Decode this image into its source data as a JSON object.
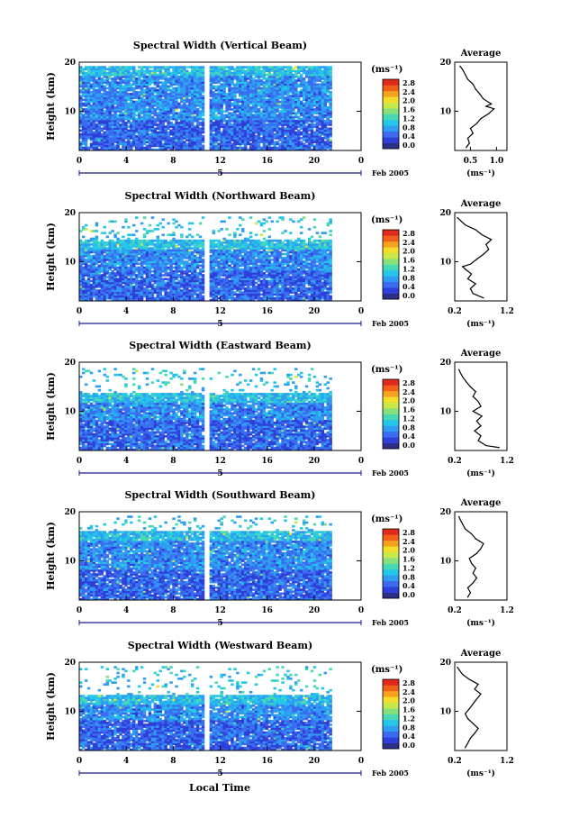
{
  "footer_xlabel": "Local Time",
  "colorbar": {
    "unit": "(ms⁻¹)",
    "ticks": [
      "0.0",
      "0.4",
      "0.8",
      "1.2",
      "1.6",
      "2.0",
      "2.4",
      "2.8"
    ],
    "colors": [
      "#2b2f87",
      "#2f3fd9",
      "#3b6cf0",
      "#2f9df2",
      "#25c7e9",
      "#49d8b4",
      "#88e07a",
      "#c8e84a",
      "#f3dc2a",
      "#f6a21e",
      "#f0601a",
      "#e0281c"
    ]
  },
  "chart_data": [
    {
      "type": "heatmap",
      "title": "Spectral Width (Vertical Beam)",
      "ylabel": "Height (km)",
      "ylim": [
        2,
        20
      ],
      "xlim": [
        0,
        24
      ],
      "x_ticks": [
        "0",
        "4",
        "8",
        "12",
        "16",
        "20",
        "0"
      ],
      "y_ticks": [
        "20",
        "10"
      ],
      "day_label": "5",
      "date_label": "Feb 2005",
      "data_x_range": [
        0,
        21.5
      ],
      "gap_x": 10.8,
      "top_km": 19.2,
      "zone_top_km": 19.2,
      "avg": {
        "title": "Average",
        "xlim": [
          0.2,
          1.2
        ],
        "x_ticks": [
          "0.5",
          "1.0"
        ],
        "x_tick_values": [
          0.5,
          1.0
        ],
        "y_ticks": [
          "20",
          "10"
        ],
        "xlabel": "(ms⁻¹)",
        "profile": [
          {
            "h": 2.6,
            "v": 0.42
          },
          {
            "h": 3.5,
            "v": 0.48
          },
          {
            "h": 4.5,
            "v": 0.45
          },
          {
            "h": 5.5,
            "v": 0.55
          },
          {
            "h": 6.5,
            "v": 0.5
          },
          {
            "h": 7.5,
            "v": 0.62
          },
          {
            "h": 8.5,
            "v": 0.7
          },
          {
            "h": 9.5,
            "v": 0.85
          },
          {
            "h": 10.5,
            "v": 0.95
          },
          {
            "h": 11.0,
            "v": 0.8
          },
          {
            "h": 11.5,
            "v": 0.9
          },
          {
            "h": 12.5,
            "v": 0.75
          },
          {
            "h": 13.5,
            "v": 0.68
          },
          {
            "h": 14.5,
            "v": 0.6
          },
          {
            "h": 15.5,
            "v": 0.55
          },
          {
            "h": 16.5,
            "v": 0.45
          },
          {
            "h": 17.5,
            "v": 0.4
          },
          {
            "h": 18.5,
            "v": 0.35
          },
          {
            "h": 19.2,
            "v": 0.3
          }
        ]
      }
    },
    {
      "type": "heatmap",
      "title": "Spectral Width (Northward Beam)",
      "ylabel": "Height (km)",
      "ylim": [
        2,
        20
      ],
      "xlim": [
        0,
        24
      ],
      "x_ticks": [
        "0",
        "4",
        "8",
        "12",
        "16",
        "20",
        "0"
      ],
      "y_ticks": [
        "20",
        "10"
      ],
      "day_label": "5",
      "date_label": "Feb 2005",
      "data_x_range": [
        0,
        21.5
      ],
      "gap_x": 10.8,
      "top_km": 19.0,
      "zone_top_km": 14.5,
      "avg": {
        "title": "Average",
        "xlim": [
          0.2,
          1.2
        ],
        "x_ticks": [
          "0.2",
          "1.2"
        ],
        "x_tick_values": [
          0.2,
          1.2
        ],
        "y_ticks": [
          "20",
          "10"
        ],
        "xlabel": "(ms⁻¹)",
        "profile": [
          {
            "h": 2.6,
            "v": 0.75
          },
          {
            "h": 3.5,
            "v": 0.55
          },
          {
            "h": 4.5,
            "v": 0.5
          },
          {
            "h": 5.5,
            "v": 0.6
          },
          {
            "h": 6.5,
            "v": 0.45
          },
          {
            "h": 7.5,
            "v": 0.52
          },
          {
            "h": 8.5,
            "v": 0.4
          },
          {
            "h": 9.0,
            "v": 0.35
          },
          {
            "h": 9.5,
            "v": 0.5
          },
          {
            "h": 10.5,
            "v": 0.62
          },
          {
            "h": 11.5,
            "v": 0.75
          },
          {
            "h": 12.5,
            "v": 0.85
          },
          {
            "h": 13.5,
            "v": 0.8
          },
          {
            "h": 14.5,
            "v": 0.9
          },
          {
            "h": 15.5,
            "v": 0.72
          },
          {
            "h": 16.5,
            "v": 0.6
          },
          {
            "h": 17.5,
            "v": 0.4
          },
          {
            "h": 18.5,
            "v": 0.3
          },
          {
            "h": 19.0,
            "v": 0.25
          }
        ]
      }
    },
    {
      "type": "heatmap",
      "title": "Spectral Width (Eastward Beam)",
      "ylabel": "Height (km)",
      "ylim": [
        2,
        20
      ],
      "xlim": [
        0,
        24
      ],
      "x_ticks": [
        "0",
        "4",
        "8",
        "12",
        "16",
        "20",
        "0"
      ],
      "y_ticks": [
        "20",
        "10"
      ],
      "day_label": "5",
      "date_label": "Feb 2005",
      "data_x_range": [
        0,
        21.5
      ],
      "gap_x": 10.8,
      "top_km": 18.5,
      "zone_top_km": 13.5,
      "avg": {
        "title": "Average",
        "xlim": [
          0.2,
          1.2
        ],
        "x_ticks": [
          "0.2",
          "1.2"
        ],
        "x_tick_values": [
          0.2,
          1.2
        ],
        "y_ticks": [
          "20",
          "10"
        ],
        "xlabel": "(ms⁻¹)",
        "profile": [
          {
            "h": 2.6,
            "v": 1.05
          },
          {
            "h": 3.0,
            "v": 0.8
          },
          {
            "h": 4.0,
            "v": 0.65
          },
          {
            "h": 5.0,
            "v": 0.7
          },
          {
            "h": 6.0,
            "v": 0.58
          },
          {
            "h": 7.0,
            "v": 0.7
          },
          {
            "h": 8.0,
            "v": 0.62
          },
          {
            "h": 9.0,
            "v": 0.72
          },
          {
            "h": 10.0,
            "v": 0.55
          },
          {
            "h": 11.0,
            "v": 0.7
          },
          {
            "h": 12.0,
            "v": 0.65
          },
          {
            "h": 13.0,
            "v": 0.55
          },
          {
            "h": 14.0,
            "v": 0.6
          },
          {
            "h": 15.0,
            "v": 0.5
          },
          {
            "h": 16.0,
            "v": 0.42
          },
          {
            "h": 17.0,
            "v": 0.35
          },
          {
            "h": 18.0,
            "v": 0.3
          },
          {
            "h": 18.5,
            "v": 0.28
          }
        ]
      }
    },
    {
      "type": "heatmap",
      "title": "Spectral Width (Southward Beam)",
      "ylabel": "Height (km)",
      "ylim": [
        2,
        20
      ],
      "xlim": [
        0,
        24
      ],
      "x_ticks": [
        "0",
        "4",
        "8",
        "12",
        "16",
        "20",
        "0"
      ],
      "y_ticks": [
        "20",
        "10"
      ],
      "day_label": "5",
      "date_label": "Feb 2005",
      "data_x_range": [
        0,
        21.5
      ],
      "gap_x": 10.8,
      "top_km": 19.0,
      "zone_top_km": 16.0,
      "avg": {
        "title": "Average",
        "xlim": [
          0.2,
          1.2
        ],
        "x_ticks": [
          "0.2",
          "1.2"
        ],
        "x_tick_values": [
          0.2,
          1.2
        ],
        "y_ticks": [
          "20",
          "10"
        ],
        "xlabel": "(ms⁻¹)",
        "profile": [
          {
            "h": 2.6,
            "v": 0.45
          },
          {
            "h": 3.5,
            "v": 0.5
          },
          {
            "h": 4.5,
            "v": 0.45
          },
          {
            "h": 5.5,
            "v": 0.55
          },
          {
            "h": 6.5,
            "v": 0.62
          },
          {
            "h": 7.5,
            "v": 0.55
          },
          {
            "h": 8.5,
            "v": 0.6
          },
          {
            "h": 9.5,
            "v": 0.52
          },
          {
            "h": 10.5,
            "v": 0.48
          },
          {
            "h": 11.5,
            "v": 0.62
          },
          {
            "h": 12.5,
            "v": 0.7
          },
          {
            "h": 13.5,
            "v": 0.75
          },
          {
            "h": 14.5,
            "v": 0.6
          },
          {
            "h": 15.5,
            "v": 0.52
          },
          {
            "h": 16.5,
            "v": 0.4
          },
          {
            "h": 17.5,
            "v": 0.35
          },
          {
            "h": 18.5,
            "v": 0.3
          },
          {
            "h": 19.0,
            "v": 0.28
          }
        ]
      }
    },
    {
      "type": "heatmap",
      "title": "Spectral Width (Westward Beam)",
      "ylabel": "Height (km)",
      "ylim": [
        2,
        20
      ],
      "xlim": [
        0,
        24
      ],
      "x_ticks": [
        "0",
        "4",
        "8",
        "12",
        "16",
        "20",
        "0"
      ],
      "y_ticks": [
        "20",
        "10"
      ],
      "day_label": "5",
      "date_label": "Feb 2005",
      "data_x_range": [
        0,
        21.5
      ],
      "gap_x": 10.8,
      "top_km": 19.0,
      "zone_top_km": 13.0,
      "avg": {
        "title": "Average",
        "xlim": [
          0.2,
          1.2
        ],
        "x_ticks": [
          "0.2",
          "1.2"
        ],
        "x_tick_values": [
          0.2,
          1.2
        ],
        "y_ticks": [
          "20",
          "10"
        ],
        "xlabel": "(ms⁻¹)",
        "profile": [
          {
            "h": 2.6,
            "v": 0.4
          },
          {
            "h": 3.5,
            "v": 0.45
          },
          {
            "h": 4.5,
            "v": 0.5
          },
          {
            "h": 5.5,
            "v": 0.58
          },
          {
            "h": 6.5,
            "v": 0.65
          },
          {
            "h": 7.5,
            "v": 0.55
          },
          {
            "h": 8.5,
            "v": 0.45
          },
          {
            "h": 9.5,
            "v": 0.4
          },
          {
            "h": 10.5,
            "v": 0.48
          },
          {
            "h": 11.5,
            "v": 0.55
          },
          {
            "h": 12.5,
            "v": 0.62
          },
          {
            "h": 13.5,
            "v": 0.7
          },
          {
            "h": 14.5,
            "v": 0.58
          },
          {
            "h": 15.5,
            "v": 0.65
          },
          {
            "h": 16.5,
            "v": 0.48
          },
          {
            "h": 17.5,
            "v": 0.35
          },
          {
            "h": 18.5,
            "v": 0.28
          },
          {
            "h": 19.0,
            "v": 0.25
          }
        ]
      }
    }
  ]
}
